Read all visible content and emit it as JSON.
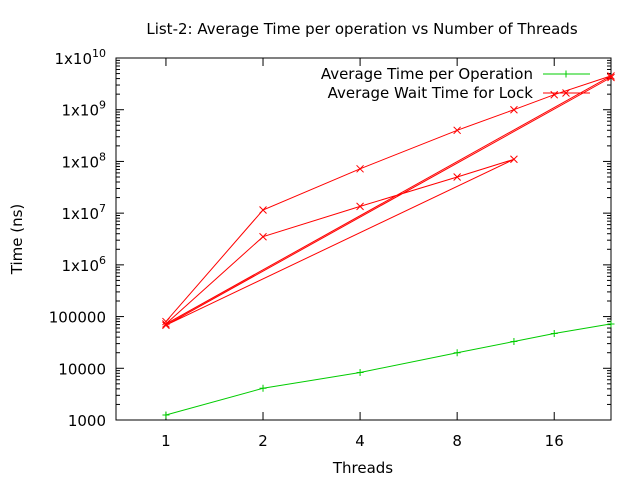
{
  "chart_data": {
    "type": "line",
    "title": "List-2: Average Time per operation vs Number of Threads",
    "xlabel": "Threads",
    "ylabel": "Time (ns)",
    "x_scale": "log2",
    "y_scale": "log10",
    "xlim": [
      0.7,
      24
    ],
    "ylim": [
      1000,
      10000000000
    ],
    "x_ticks": [
      {
        "value": 1,
        "label": "1"
      },
      {
        "value": 2,
        "label": "2"
      },
      {
        "value": 4,
        "label": "4"
      },
      {
        "value": 8,
        "label": "8"
      },
      {
        "value": 16,
        "label": "16"
      }
    ],
    "y_ticks": [
      {
        "value": 1000,
        "label": "1000"
      },
      {
        "value": 10000,
        "label": "10000"
      },
      {
        "value": 100000,
        "label": "100000"
      },
      {
        "value": 1000000,
        "base": "1x10",
        "exp": "6"
      },
      {
        "value": 10000000,
        "base": "1x10",
        "exp": "7"
      },
      {
        "value": 100000000,
        "base": "1x10",
        "exp": "8"
      },
      {
        "value": 1000000000,
        "base": "1x10",
        "exp": "9"
      },
      {
        "value": 10000000000,
        "base": "1x10",
        "exp": "10"
      }
    ],
    "grid": false,
    "legend_position": "top-right",
    "series": [
      {
        "name": "Average Time per Operation",
        "color": "#00cc00",
        "marker": "plus",
        "points": [
          [
            1,
            1250
          ],
          [
            2,
            4100
          ],
          [
            4,
            8300
          ],
          [
            8,
            20000
          ],
          [
            12,
            33000
          ],
          [
            16,
            47000
          ],
          [
            24,
            72000
          ]
        ]
      },
      {
        "name": "Average Wait Time for Lock",
        "color": "#ff0000",
        "marker": "x",
        "points": [
          [
            1,
            80000
          ],
          [
            2,
            11500000
          ],
          [
            4,
            72000000
          ],
          [
            8,
            400000000
          ],
          [
            12,
            1000000000
          ],
          [
            16,
            1950000000
          ],
          [
            24,
            4500000000
          ],
          [
            1,
            72000
          ],
          [
            2,
            3500000
          ],
          [
            4,
            13500000
          ],
          [
            8,
            50000000
          ],
          [
            12,
            110000000
          ],
          [
            1,
            68000
          ],
          [
            24,
            4200000000
          ]
        ]
      }
    ]
  }
}
